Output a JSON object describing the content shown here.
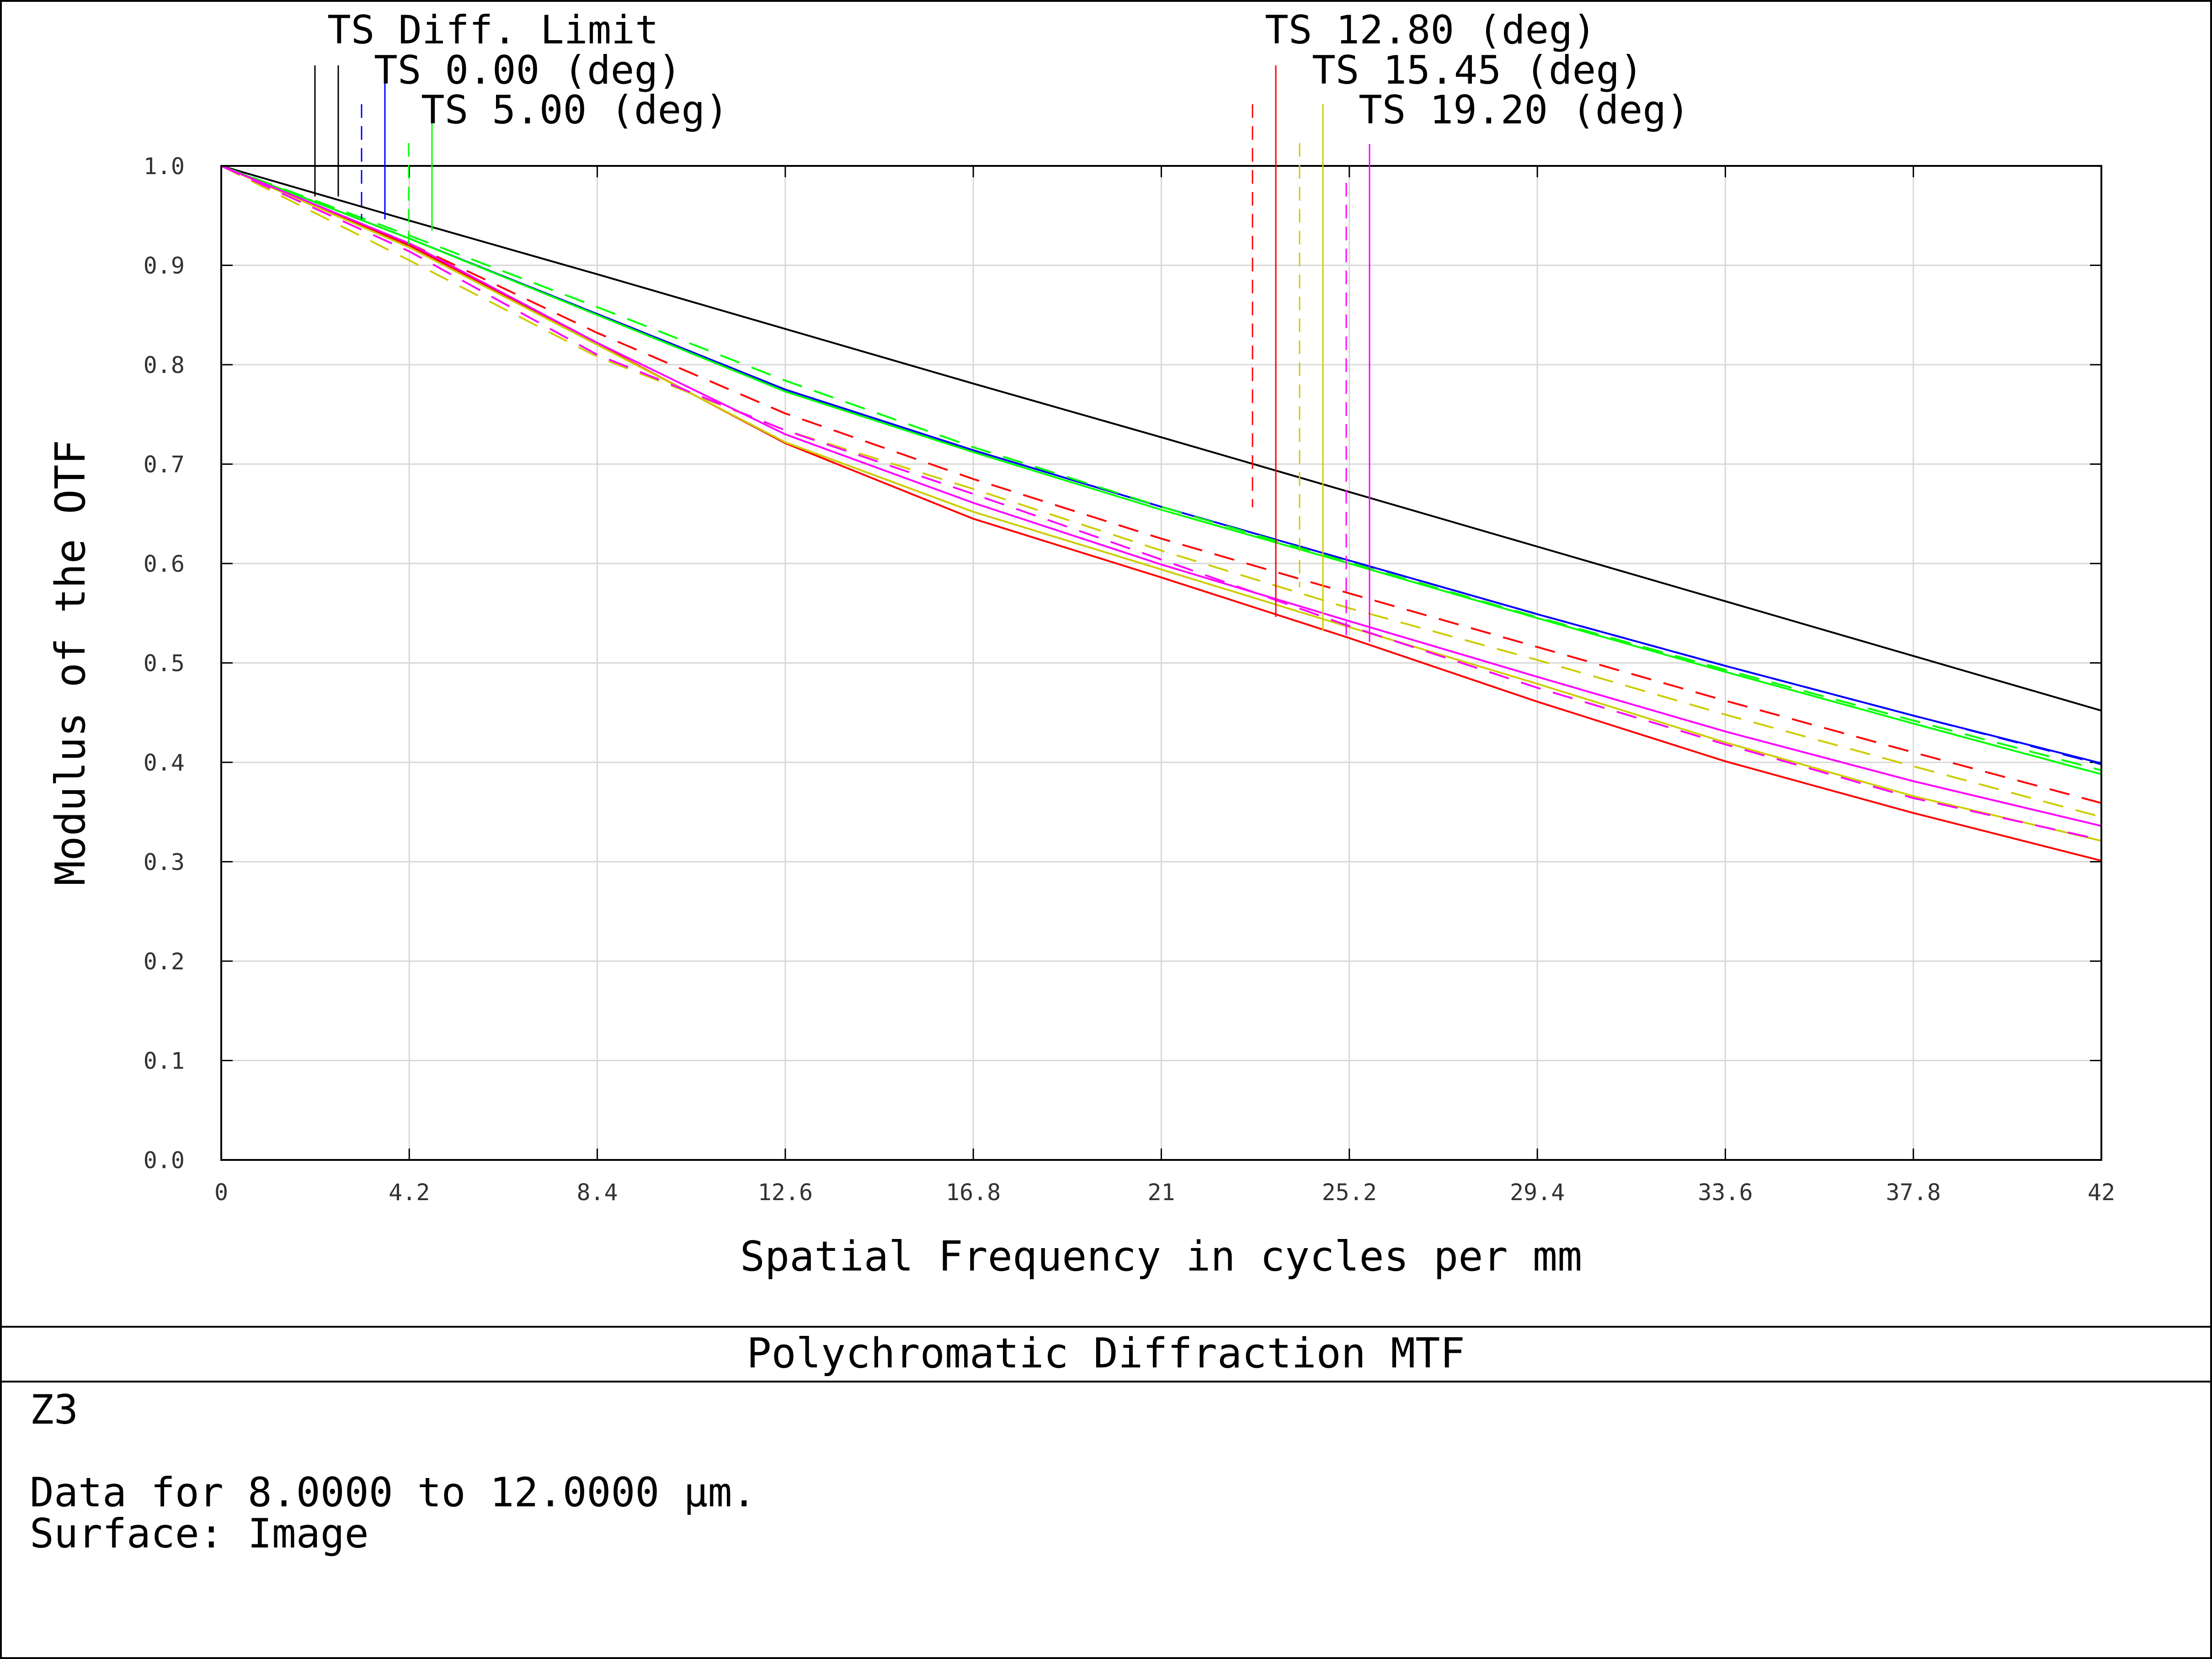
{
  "chart_data": {
    "type": "line",
    "title": "Polychromatic Diffraction MTF",
    "xlabel": "Spatial Frequency in cycles per mm",
    "ylabel": "Modulus of the OTF",
    "xlim": [
      0,
      42
    ],
    "ylim": [
      0,
      1.0
    ],
    "x_ticks": [
      "0",
      "4.2",
      "8.4",
      "12.6",
      "16.8",
      "21",
      "25.2",
      "29.4",
      "33.6",
      "37.8",
      "42"
    ],
    "y_ticks": [
      "0.0",
      "0.1",
      "0.2",
      "0.3",
      "0.4",
      "0.5",
      "0.6",
      "0.7",
      "0.8",
      "0.9",
      "1.0"
    ],
    "grid": true,
    "legend_labels": [
      "TS Diff. Limit",
      "TS 0.00 (deg)",
      "TS 5.00 (deg)",
      "TS 12.80 (deg)",
      "TS 15.45 (deg)",
      "TS 19.20 (deg)"
    ],
    "x": [
      0,
      4.2,
      8.4,
      12.6,
      16.8,
      21,
      25.2,
      29.4,
      33.6,
      37.8,
      42
    ],
    "series": [
      {
        "name": "TS Diff. Limit",
        "color": "#000000",
        "style": "solid",
        "values": [
          1.0,
          0.945,
          0.891,
          0.836,
          0.781,
          0.727,
          0.672,
          0.617,
          0.562,
          0.507,
          0.452
        ]
      },
      {
        "name": "TS 0.00 (deg)",
        "color": "#0000ff",
        "style": "dashed",
        "values": [
          1.0,
          0.927,
          0.851,
          0.775,
          0.714,
          0.657,
          0.603,
          0.549,
          0.497,
          0.447,
          0.398
        ]
      },
      {
        "name": "TS 0.00 (deg)",
        "color": "#0000ff",
        "style": "solid",
        "values": [
          1.0,
          0.927,
          0.851,
          0.775,
          0.714,
          0.657,
          0.603,
          0.549,
          0.497,
          0.447,
          0.399
        ]
      },
      {
        "name": "TS 5.00 (deg)",
        "color": "#00ff00",
        "style": "dashed",
        "values": [
          1.0,
          0.93,
          0.858,
          0.784,
          0.717,
          0.657,
          0.601,
          0.546,
          0.493,
          0.442,
          0.392
        ]
      },
      {
        "name": "TS 5.00 (deg)",
        "color": "#00ff00",
        "style": "solid",
        "values": [
          1.0,
          0.927,
          0.85,
          0.773,
          0.712,
          0.654,
          0.6,
          0.545,
          0.491,
          0.439,
          0.388
        ]
      },
      {
        "name": "TS 12.80 (deg)",
        "color": "#ff0000",
        "style": "dashed",
        "values": [
          1.0,
          0.922,
          0.832,
          0.751,
          0.685,
          0.625,
          0.57,
          0.516,
          0.462,
          0.41,
          0.359
        ]
      },
      {
        "name": "TS 12.80 (deg)",
        "color": "#ff0000",
        "style": "solid",
        "values": [
          1.0,
          0.92,
          0.821,
          0.721,
          0.645,
          0.586,
          0.525,
          0.461,
          0.401,
          0.349,
          0.301
        ]
      },
      {
        "name": "TS 15.45 (deg)",
        "color": "#cccc00",
        "style": "dashed",
        "values": [
          1.0,
          0.905,
          0.808,
          0.734,
          0.675,
          0.613,
          0.555,
          0.503,
          0.448,
          0.396,
          0.345
        ]
      },
      {
        "name": "TS 15.45 (deg)",
        "color": "#cccc00",
        "style": "solid",
        "values": [
          1.0,
          0.918,
          0.82,
          0.722,
          0.652,
          0.594,
          0.536,
          0.479,
          0.42,
          0.366,
          0.321
        ]
      },
      {
        "name": "TS 19.20 (deg)",
        "color": "#ff00ff",
        "style": "dashed",
        "values": [
          1.0,
          0.914,
          0.81,
          0.734,
          0.67,
          0.604,
          0.537,
          0.475,
          0.418,
          0.364,
          0.322
        ]
      },
      {
        "name": "TS 19.20 (deg)",
        "color": "#ff00ff",
        "style": "solid",
        "values": [
          1.0,
          0.922,
          0.822,
          0.73,
          0.661,
          0.599,
          0.542,
          0.486,
          0.431,
          0.381,
          0.336
        ]
      }
    ]
  },
  "legend_colors": [
    "#000000",
    "#0000ff",
    "#00ff00",
    "#ff0000",
    "#cccc00",
    "#ff00ff"
  ],
  "info": {
    "name": "Z3",
    "data_range": "Data for 8.0000 to 12.0000 μm.",
    "surface": "Surface: Image"
  }
}
